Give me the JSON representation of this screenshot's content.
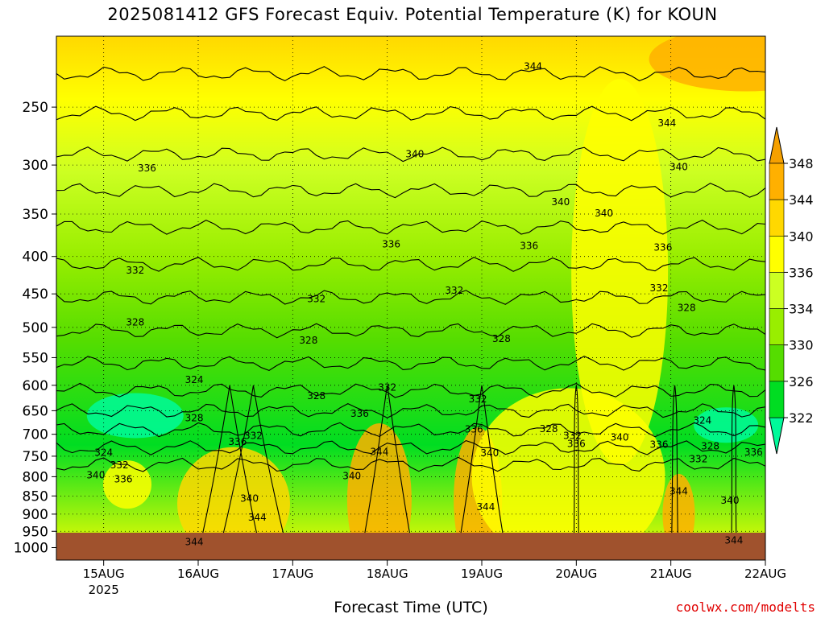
{
  "title": "2025081412 GFS Forecast Equiv. Potential Temperature (K) for KOUN",
  "xaxis_title": "Forecast Time (UTC)",
  "credit": "coolwx.com/modelts",
  "colors": {
    "ground": "#a0522d",
    "contour_line": "#000000"
  },
  "chart_data": {
    "type": "heatmap",
    "variable": "Equivalent Potential Temperature (K)",
    "station": "KOUN",
    "model_run": "2025081412",
    "x_ticks": [
      {
        "label": "15AUG",
        "sub": "2025",
        "t": 12
      },
      {
        "label": "16AUG",
        "sub": "",
        "t": 36
      },
      {
        "label": "17AUG",
        "sub": "",
        "t": 60
      },
      {
        "label": "18AUG",
        "sub": "",
        "t": 84
      },
      {
        "label": "19AUG",
        "sub": "",
        "t": 108
      },
      {
        "label": "20AUG",
        "sub": "",
        "t": 132
      },
      {
        "label": "21AUG",
        "sub": "",
        "t": 156
      },
      {
        "label": "22AUG",
        "sub": "",
        "t": 180
      }
    ],
    "xlim_hours": [
      0,
      180
    ],
    "y_ticks": [
      250,
      300,
      350,
      400,
      450,
      500,
      550,
      600,
      650,
      700,
      750,
      800,
      850,
      900,
      950,
      1000
    ],
    "ylim_hpa": [
      200,
      1040
    ],
    "y_scale": "log",
    "ground_top_hpa": 985,
    "colorbar": {
      "levels": [
        322,
        326,
        330,
        334,
        336,
        340,
        344,
        348
      ],
      "colors": [
        "#00fa9a",
        "#00dd22",
        "#55dd00",
        "#99ee00",
        "#ccff22",
        "#ffff00",
        "#ffd800",
        "#ffb000",
        "#f5a000"
      ]
    },
    "contour_labels": [
      {
        "v": "344",
        "t": 121,
        "p": 220
      },
      {
        "v": "344",
        "t": 155,
        "p": 263
      },
      {
        "v": "336",
        "t": 23,
        "p": 303
      },
      {
        "v": "340",
        "t": 91,
        "p": 290
      },
      {
        "v": "340",
        "t": 158,
        "p": 302
      },
      {
        "v": "340",
        "t": 128,
        "p": 337
      },
      {
        "v": "340",
        "t": 139,
        "p": 349
      },
      {
        "v": "336",
        "t": 85,
        "p": 385
      },
      {
        "v": "336",
        "t": 120,
        "p": 387
      },
      {
        "v": "336",
        "t": 154,
        "p": 389
      },
      {
        "v": "332",
        "t": 20,
        "p": 418
      },
      {
        "v": "332",
        "t": 66,
        "p": 457
      },
      {
        "v": "332",
        "t": 101,
        "p": 445
      },
      {
        "v": "332",
        "t": 153,
        "p": 442
      },
      {
        "v": "328",
        "t": 20,
        "p": 492
      },
      {
        "v": "328",
        "t": 64,
        "p": 521
      },
      {
        "v": "328",
        "t": 113,
        "p": 518
      },
      {
        "v": "328",
        "t": 160,
        "p": 470
      },
      {
        "v": "324",
        "t": 35,
        "p": 590
      },
      {
        "v": "324",
        "t": 164,
        "p": 670
      },
      {
        "v": "328",
        "t": 35,
        "p": 665
      },
      {
        "v": "328",
        "t": 66,
        "p": 620
      },
      {
        "v": "332",
        "t": 84,
        "p": 604
      },
      {
        "v": "332",
        "t": 107,
        "p": 627
      },
      {
        "v": "336",
        "t": 77,
        "p": 656
      },
      {
        "v": "336",
        "t": 106,
        "p": 689
      },
      {
        "v": "336",
        "t": 46,
        "p": 717
      },
      {
        "v": "332",
        "t": 50,
        "p": 703
      },
      {
        "v": "328",
        "t": 125,
        "p": 688
      },
      {
        "v": "332",
        "t": 131,
        "p": 703
      },
      {
        "v": "336",
        "t": 132,
        "p": 721
      },
      {
        "v": "340",
        "t": 143,
        "p": 707
      },
      {
        "v": "336",
        "t": 153,
        "p": 723
      },
      {
        "v": "328",
        "t": 166,
        "p": 727
      },
      {
        "v": "332",
        "t": 163,
        "p": 757
      },
      {
        "v": "336",
        "t": 177,
        "p": 741
      },
      {
        "v": "324",
        "t": 12,
        "p": 742
      },
      {
        "v": "332",
        "t": 16,
        "p": 771
      },
      {
        "v": "340",
        "t": 10,
        "p": 796
      },
      {
        "v": "336",
        "t": 17,
        "p": 806
      },
      {
        "v": "344",
        "t": 82,
        "p": 740
      },
      {
        "v": "340",
        "t": 110,
        "p": 743
      },
      {
        "v": "340",
        "t": 75,
        "p": 798
      },
      {
        "v": "340",
        "t": 49,
        "p": 857
      },
      {
        "v": "344",
        "t": 51,
        "p": 909
      },
      {
        "v": "344",
        "t": 109,
        "p": 880
      },
      {
        "v": "344",
        "t": 158,
        "p": 838
      },
      {
        "v": "340",
        "t": 171,
        "p": 862
      },
      {
        "v": "344",
        "t": 35,
        "p": 983
      },
      {
        "v": "344",
        "t": 172,
        "p": 977
      }
    ]
  }
}
